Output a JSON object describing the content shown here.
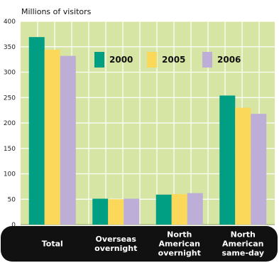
{
  "chart_data": {
    "type": "bar",
    "ylabel": "Millions of visitors",
    "ylim": [
      0,
      400
    ],
    "yticks": [
      0,
      50,
      100,
      150,
      200,
      250,
      300,
      350,
      400
    ],
    "grid": true,
    "legend_position": "top-center",
    "categories": [
      [
        "Total"
      ],
      [
        "Overseas",
        "overnight"
      ],
      [
        "North",
        "American",
        "overnight"
      ],
      [
        "North",
        "American",
        "same-day"
      ]
    ],
    "series": [
      {
        "name": "2000",
        "color": "#009e82",
        "values": [
          369,
          51,
          59,
          254
        ]
      },
      {
        "name": "2005",
        "color": "#fcd85a",
        "values": [
          344,
          50,
          60,
          230
        ]
      },
      {
        "name": "2006",
        "color": "#bcaed6",
        "values": [
          332,
          51,
          62,
          218
        ]
      }
    ],
    "colors": {
      "plot_background": "#d6e4a4",
      "gridline": "#ffffff",
      "category_band": "#111111"
    }
  }
}
